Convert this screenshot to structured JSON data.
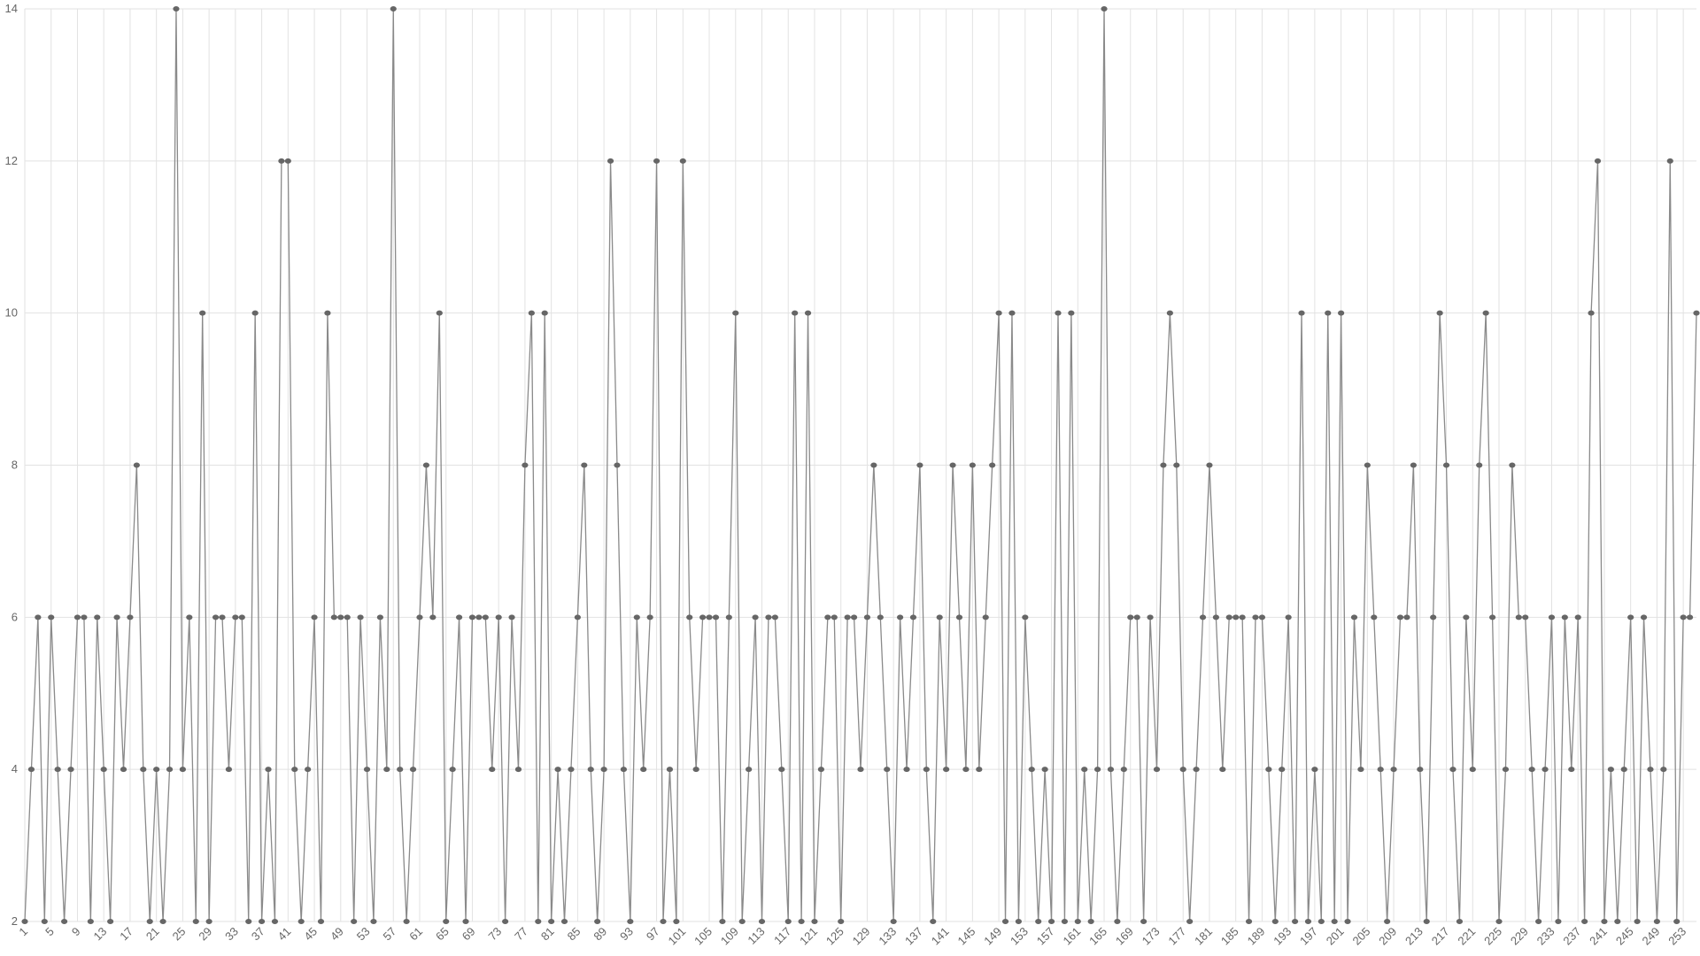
{
  "chart_data": {
    "type": "line",
    "title": "",
    "xlabel": "",
    "ylabel": "",
    "x_start": 1,
    "x_tick_step": 4,
    "ylim": [
      2,
      14
    ],
    "y_ticks": [
      2,
      4,
      6,
      8,
      10,
      12,
      14
    ],
    "grid": true,
    "markers": true,
    "colors": {
      "line": "#8a8a8a",
      "marker": "#666666",
      "grid": "#e2e2e2",
      "text": "#666666"
    },
    "values": [
      2,
      4,
      6,
      2,
      6,
      4,
      2,
      4,
      6,
      6,
      2,
      6,
      4,
      2,
      6,
      4,
      6,
      8,
      4,
      2,
      4,
      2,
      4,
      14,
      4,
      6,
      2,
      10,
      2,
      6,
      6,
      4,
      6,
      6,
      2,
      10,
      2,
      4,
      2,
      12,
      12,
      4,
      2,
      4,
      6,
      2,
      10,
      6,
      6,
      6,
      2,
      6,
      4,
      2,
      6,
      4,
      14,
      4,
      2,
      4,
      6,
      8,
      6,
      10,
      2,
      4,
      6,
      2,
      6,
      6,
      6,
      4,
      6,
      2,
      6,
      4,
      8,
      10,
      2,
      10,
      2,
      4,
      2,
      4,
      6,
      8,
      4,
      2,
      4,
      12,
      8,
      4,
      2,
      6,
      4,
      6,
      12,
      2,
      4,
      2,
      12,
      6,
      4,
      6,
      6,
      6,
      2,
      6,
      10,
      2,
      4,
      6,
      2,
      6,
      6,
      4,
      2,
      10,
      2,
      10,
      2,
      4,
      6,
      6,
      2,
      6,
      6,
      4,
      6,
      8,
      6,
      4,
      2,
      6,
      4,
      6,
      8,
      4,
      2,
      6,
      4,
      8,
      6,
      4,
      8,
      4,
      6,
      8,
      10,
      2,
      10,
      2,
      6,
      4,
      2,
      4,
      2,
      10,
      2,
      10,
      2,
      4,
      2,
      4,
      14,
      4,
      2,
      4,
      6,
      6,
      2,
      6,
      4,
      8,
      10,
      8,
      4,
      2,
      4,
      6,
      8,
      6,
      4,
      6,
      6,
      6,
      2,
      6,
      6,
      4,
      2,
      4,
      6,
      2,
      10,
      2,
      4,
      2,
      10,
      2,
      10,
      2,
      6,
      4,
      8,
      6,
      4,
      2,
      4,
      6,
      6,
      8,
      4,
      2,
      6,
      10,
      8,
      4,
      2,
      6,
      4,
      8,
      10,
      6,
      2,
      4,
      8,
      6,
      6,
      4,
      2,
      4,
      6,
      2,
      6,
      4,
      6,
      2,
      10,
      12,
      2,
      4,
      2,
      4,
      6,
      2,
      6,
      4,
      2,
      4,
      12,
      2,
      6,
      6,
      10
    ]
  }
}
